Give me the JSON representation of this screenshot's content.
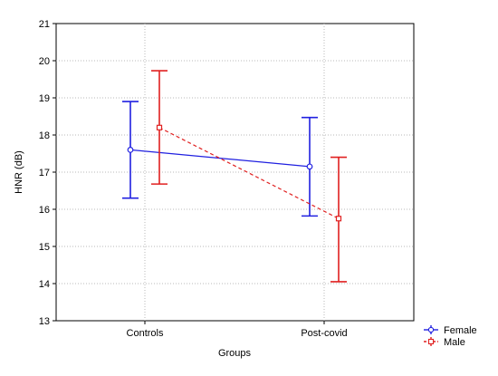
{
  "chart_data": {
    "type": "line",
    "xlabel": "Groups",
    "ylabel": "HNR (dB)",
    "categories": [
      "Controls",
      "Post-covid"
    ],
    "ylim": [
      13,
      21
    ],
    "yticks": [
      13,
      14,
      15,
      16,
      17,
      18,
      19,
      20,
      21
    ],
    "grid": true,
    "legend_position": "bottom-right",
    "series": [
      {
        "name": "Female",
        "color": "#2020e0",
        "line_style": "solid",
        "marker": "circle",
        "values": [
          17.6,
          17.15
        ],
        "lower": [
          16.3,
          15.82
        ],
        "upper": [
          18.9,
          18.47
        ]
      },
      {
        "name": "Male",
        "color": "#e02020",
        "line_style": "dashed",
        "marker": "square",
        "values": [
          18.2,
          15.75
        ],
        "lower": [
          16.68,
          14.05
        ],
        "upper": [
          19.73,
          17.4
        ]
      }
    ]
  }
}
